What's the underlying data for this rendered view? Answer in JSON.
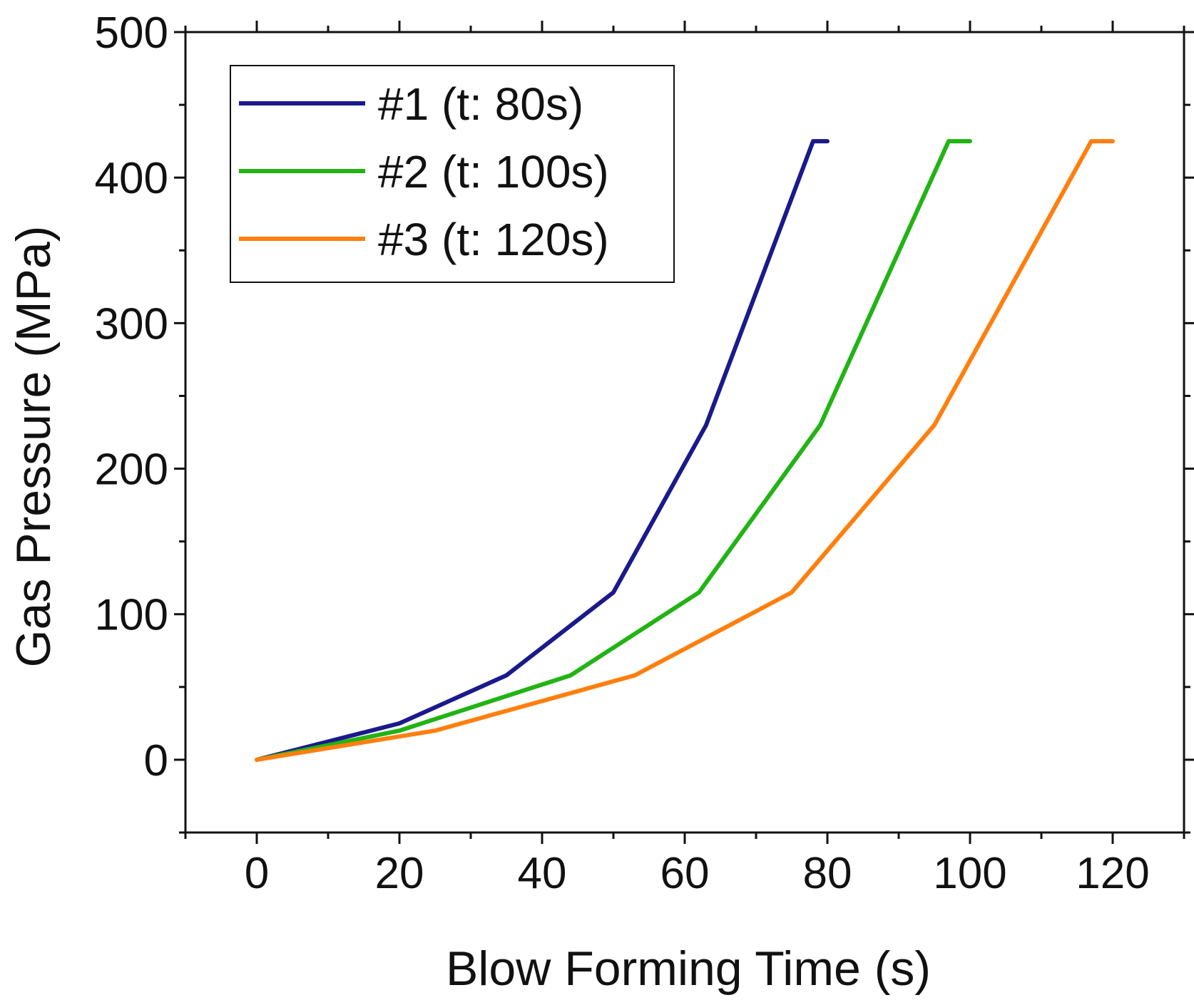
{
  "chart_data": {
    "type": "line",
    "title": "",
    "xlabel": "Blow Forming Time (s)",
    "ylabel": "Gas Pressure (MPa)",
    "xlim": [
      -10,
      130
    ],
    "ylim": [
      -50,
      500
    ],
    "xticks": [
      0,
      20,
      40,
      60,
      80,
      100,
      120
    ],
    "yticks": [
      0,
      100,
      200,
      300,
      400,
      500
    ],
    "x_tick_labels": [
      "0",
      "20",
      "40",
      "60",
      "80",
      "100",
      "120"
    ],
    "y_tick_labels": [
      "0",
      "100",
      "200",
      "300",
      "400",
      "500"
    ],
    "grid": false,
    "legend_position": "top-left",
    "series": [
      {
        "name": "#1 (t: 80s)",
        "color": "#1a1a8c",
        "x": [
          0,
          20,
          35,
          50,
          63,
          78,
          80
        ],
        "y": [
          0,
          25,
          58,
          115,
          230,
          425,
          425
        ]
      },
      {
        "name": "#2 (t: 100s)",
        "color": "#22b314",
        "x": [
          0,
          20,
          44,
          62,
          79,
          97,
          100
        ],
        "y": [
          0,
          20,
          58,
          115,
          230,
          425,
          425
        ]
      },
      {
        "name": "#3 (t: 120s)",
        "color": "#ff7f0e",
        "x": [
          0,
          25,
          53,
          75,
          95,
          117,
          120
        ],
        "y": [
          0,
          20,
          58,
          115,
          230,
          425,
          425
        ]
      }
    ]
  }
}
